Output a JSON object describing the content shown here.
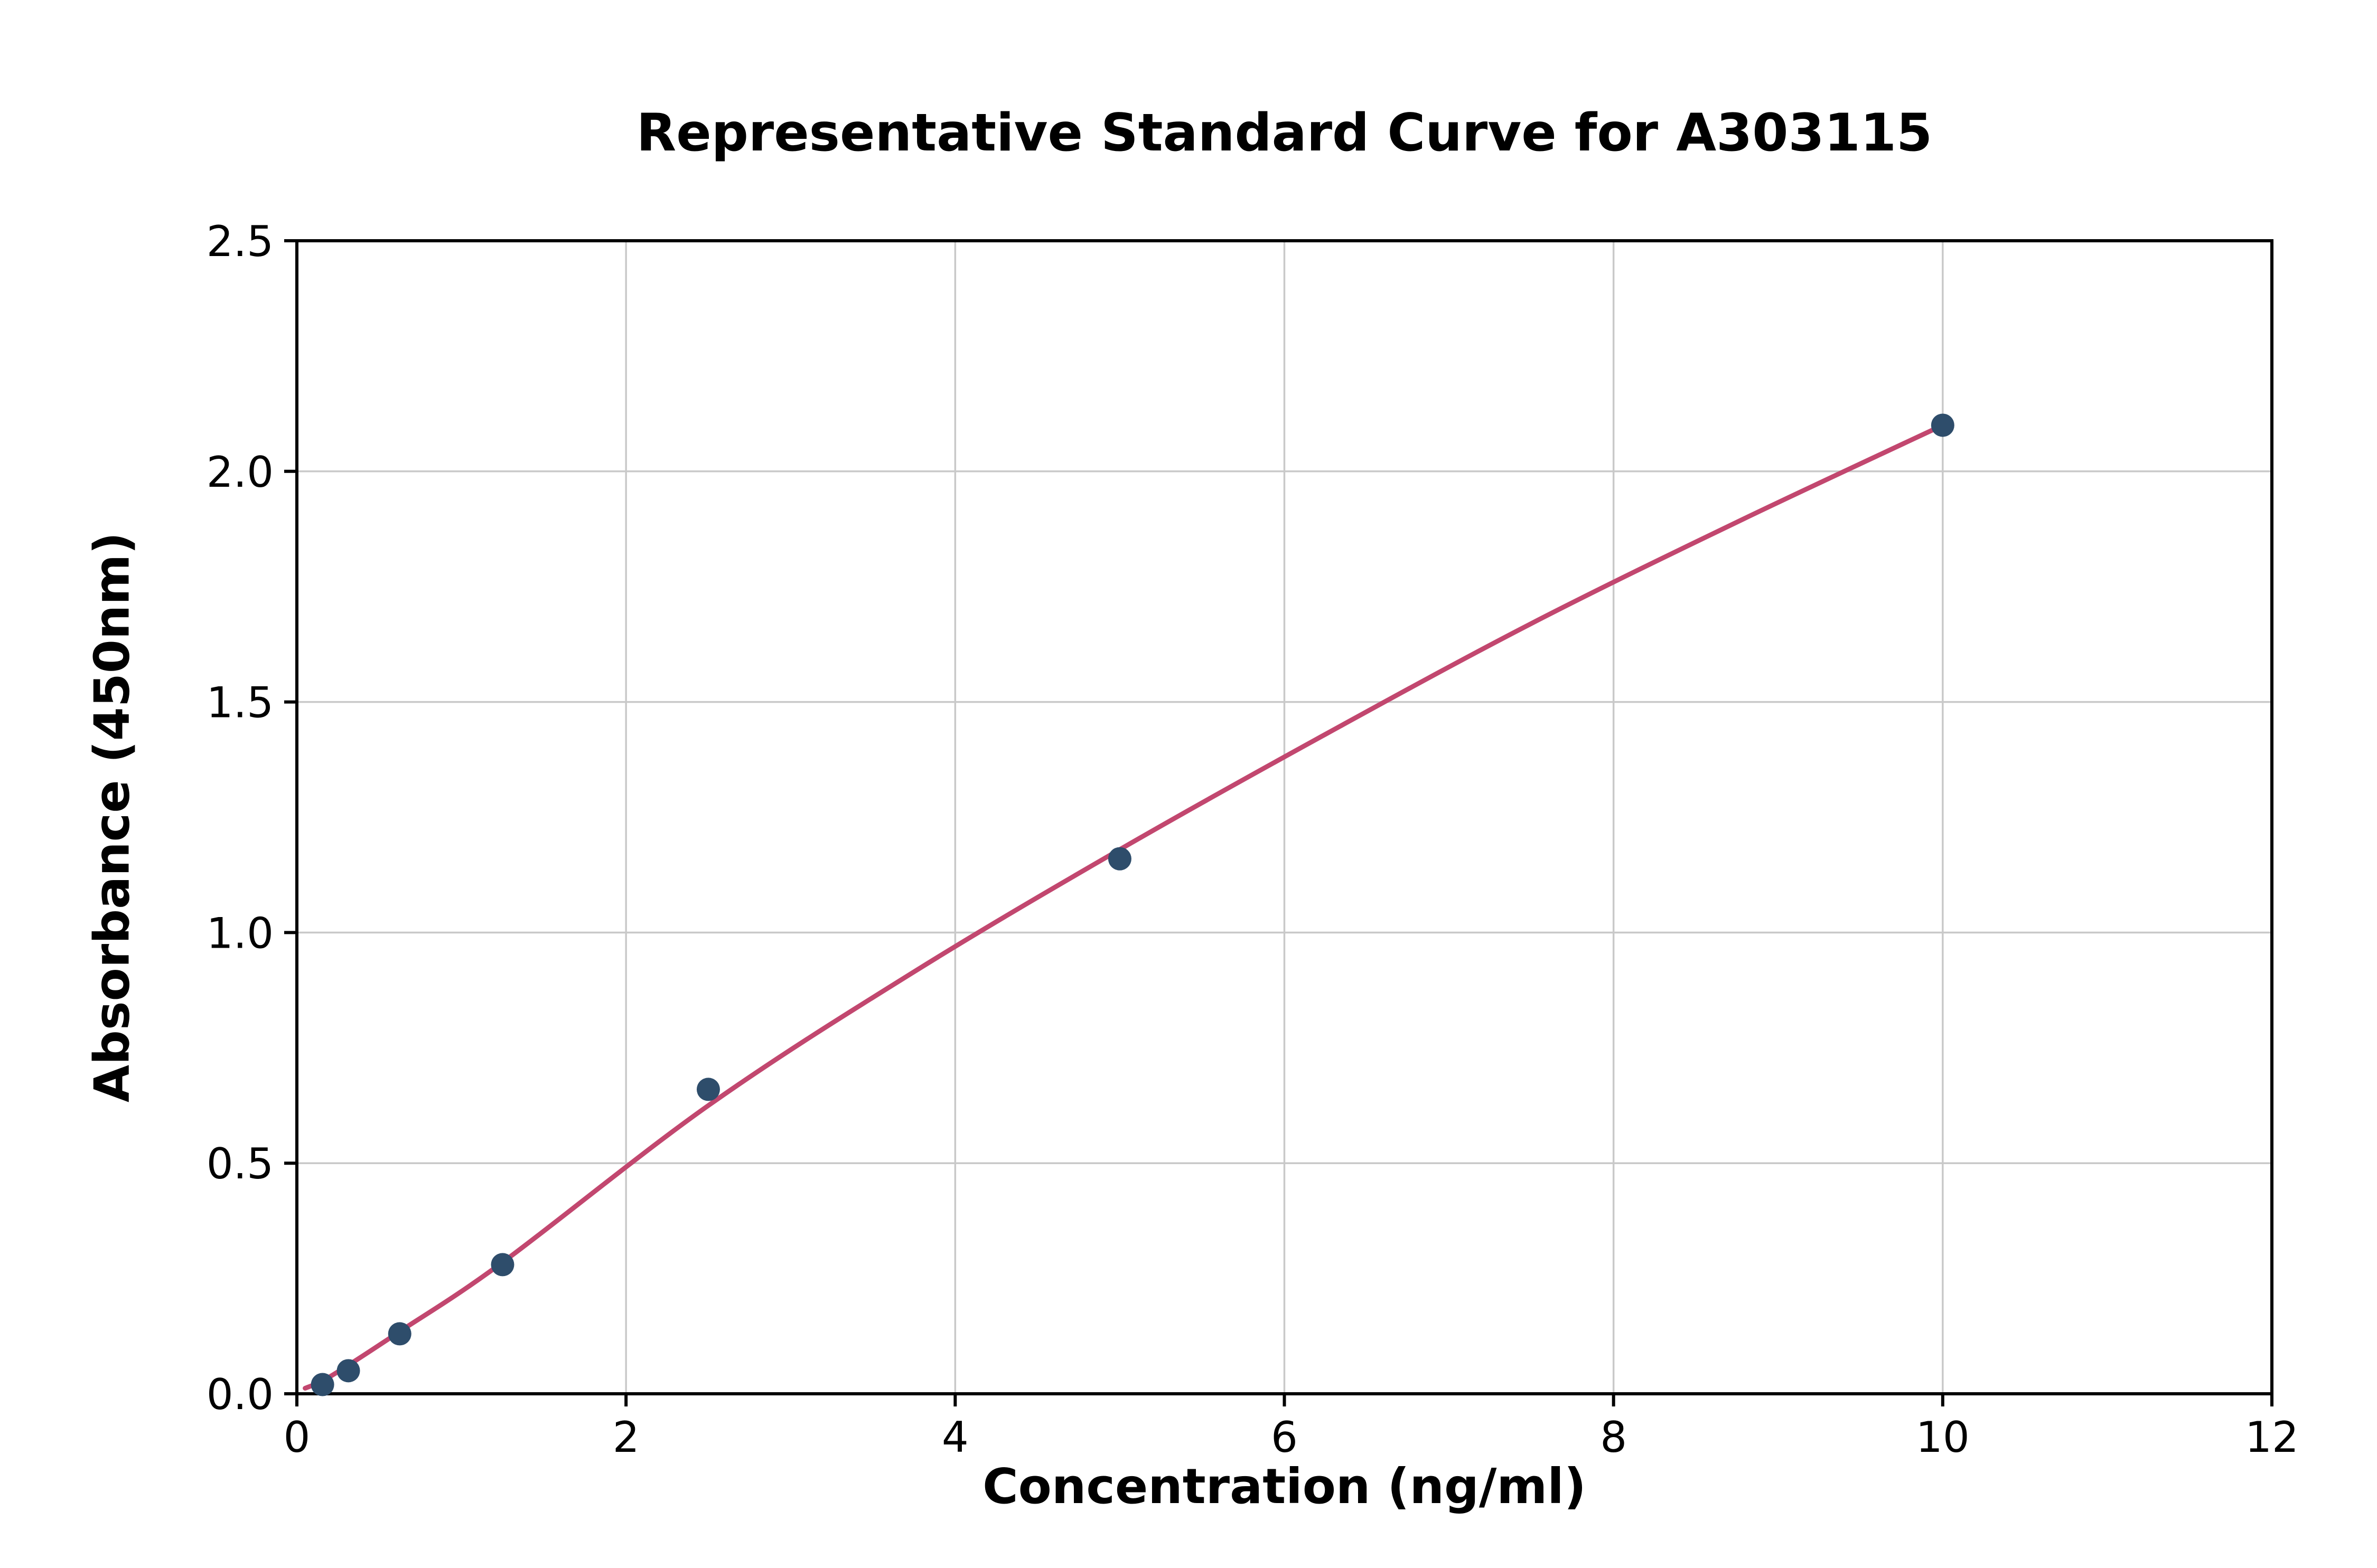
{
  "chart_data": {
    "type": "scatter",
    "title": "Representative Standard Curve for A303115",
    "xlabel": "Concentration (ng/ml)",
    "ylabel": "Absorbance (450nm)",
    "xlim": [
      0,
      12
    ],
    "ylim": [
      0,
      2.5
    ],
    "grid": true,
    "legend": "none",
    "xticks": {
      "values": [
        0,
        2,
        4,
        6,
        8,
        10,
        12
      ],
      "labels": [
        "0",
        "2",
        "4",
        "6",
        "8",
        "10",
        "12"
      ]
    },
    "yticks": {
      "values": [
        0,
        0.5,
        1.0,
        1.5,
        2.0,
        2.5
      ],
      "labels": [
        "0.0",
        "0.5",
        "1.0",
        "1.5",
        "2.0",
        "2.5"
      ]
    },
    "points": [
      {
        "x": 0.156,
        "y": 0.02
      },
      {
        "x": 0.313,
        "y": 0.05
      },
      {
        "x": 0.625,
        "y": 0.13
      },
      {
        "x": 1.25,
        "y": 0.28
      },
      {
        "x": 2.5,
        "y": 0.66
      },
      {
        "x": 5.0,
        "y": 1.16
      },
      {
        "x": 10.0,
        "y": 2.1
      }
    ],
    "fit_curve": [
      {
        "x": 0.05,
        "y": 0.012
      },
      {
        "x": 0.156,
        "y": 0.028
      },
      {
        "x": 0.313,
        "y": 0.062
      },
      {
        "x": 0.625,
        "y": 0.135
      },
      {
        "x": 1.25,
        "y": 0.285
      },
      {
        "x": 2.5,
        "y": 0.625
      },
      {
        "x": 3.75,
        "y": 0.915
      },
      {
        "x": 5.0,
        "y": 1.18
      },
      {
        "x": 6.25,
        "y": 1.43
      },
      {
        "x": 7.5,
        "y": 1.67
      },
      {
        "x": 8.75,
        "y": 1.89
      },
      {
        "x": 10.0,
        "y": 2.1
      }
    ],
    "colors": {
      "point": "#2e4d6b",
      "curve": "#c2476f",
      "grid": "#c9c9c9",
      "axis": "#000000",
      "background": "#ffffff"
    }
  }
}
